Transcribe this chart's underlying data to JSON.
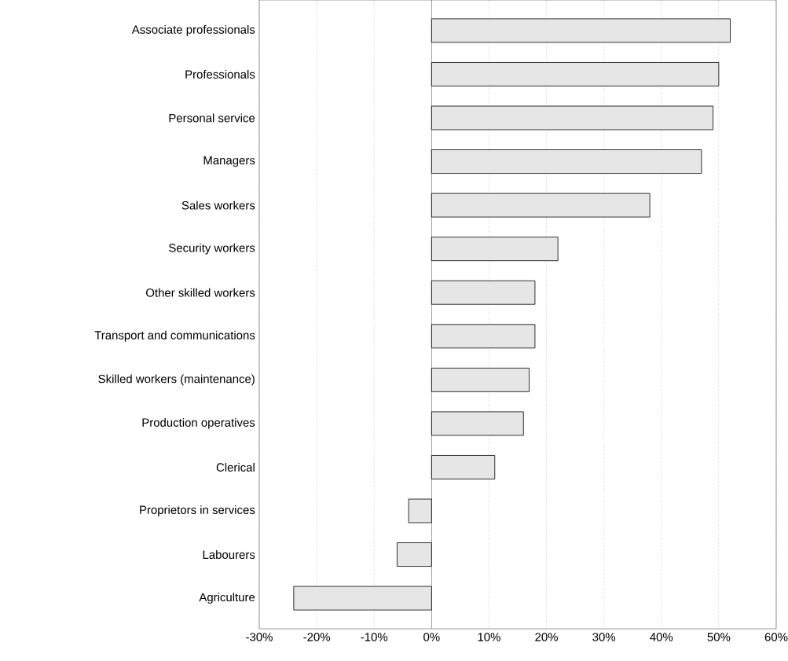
{
  "chart_data": {
    "type": "bar",
    "orientation": "horizontal",
    "categories": [
      "Associate professionals",
      "Professionals",
      "Personal service",
      "Managers",
      "Sales workers",
      "Security workers",
      "Other skilled workers",
      "Transport and communications",
      "Skilled workers (maintenance)",
      "Production operatives",
      "Clerical",
      "Proprietors in services",
      "Labourers",
      "Agriculture"
    ],
    "values": [
      52,
      50,
      49,
      47,
      38,
      22,
      18,
      18,
      17,
      16,
      11,
      -4,
      -6,
      -24
    ],
    "color": "#e6e6e6",
    "xlim": [
      -30,
      60
    ],
    "xticks": [
      {
        "value": -30,
        "label": "-30%"
      },
      {
        "value": -20,
        "label": "-20%"
      },
      {
        "value": -10,
        "label": "-10%"
      },
      {
        "value": 0,
        "label": "0%"
      },
      {
        "value": 10,
        "label": "10%"
      },
      {
        "value": 20,
        "label": "20%"
      },
      {
        "value": 30,
        "label": "30%"
      },
      {
        "value": 40,
        "label": "40%"
      },
      {
        "value": 50,
        "label": "50%"
      },
      {
        "value": 60,
        "label": "60%"
      }
    ],
    "grid": "x"
  }
}
